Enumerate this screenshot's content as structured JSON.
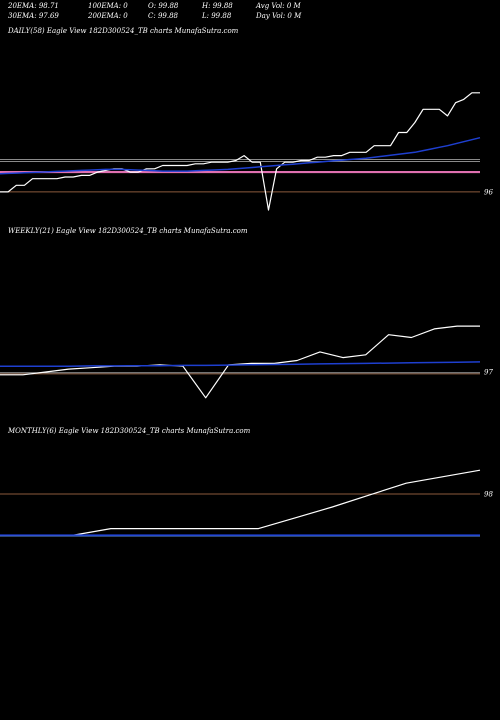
{
  "header": {
    "ema20": "20EMA: 98.71",
    "ema100": "100EMA: 0",
    "open": "O: 99.88",
    "high": "H: 99.88",
    "avg_vol": "Avg Vol: 0  M",
    "ema30": "30EMA: 97.69",
    "ema200": "200EMA: 0",
    "close": "C: 99.88",
    "low": "L: 99.88",
    "day_vol": "Day Vol: 0  M"
  },
  "colors": {
    "price": "#ffffff",
    "ema_blue": "#1e3fd0",
    "gray_line": "#b8b8b8",
    "pink_line": "#e070b0",
    "brown_line": "#8b5a3c",
    "light_blue": "#5a8ee0",
    "background": "#000000"
  },
  "chart_data": [
    {
      "type": "line",
      "title": "DAILY(58) Eagle  View  182D300524_TB charts MunafaSutra.com",
      "yticks": [
        {
          "value": 96,
          "label": "96"
        }
      ],
      "ylim": [
        95.3,
        100.6
      ],
      "series": [
        {
          "role": "price",
          "values": [
            96.0,
            96.0,
            96.2,
            96.2,
            96.4,
            96.4,
            96.4,
            96.4,
            96.45,
            96.45,
            96.5,
            96.5,
            96.6,
            96.65,
            96.7,
            96.7,
            96.6,
            96.6,
            96.7,
            96.7,
            96.8,
            96.8,
            96.8,
            96.8,
            96.85,
            96.85,
            96.9,
            96.9,
            96.9,
            96.95,
            97.1,
            96.9,
            96.9,
            95.45,
            96.7,
            96.9,
            96.9,
            96.95,
            96.95,
            97.05,
            97.05,
            97.1,
            97.1,
            97.2,
            97.2,
            97.2,
            97.4,
            97.4,
            97.4,
            97.8,
            97.8,
            98.1,
            98.5,
            98.5,
            98.5,
            98.3,
            98.7,
            98.8,
            99.0,
            99.0
          ]
        },
        {
          "role": "ema",
          "values": [
            96.55,
            96.56,
            96.57,
            96.58,
            96.59,
            96.6,
            96.61,
            96.62,
            96.63,
            96.64,
            96.65,
            96.66,
            96.67,
            96.68,
            96.68,
            96.68,
            96.67,
            96.66,
            96.65,
            96.64,
            96.63,
            96.63,
            96.63,
            96.63,
            96.64,
            96.65,
            96.66,
            96.67,
            96.68,
            96.7,
            96.72,
            96.74,
            96.76,
            96.78,
            96.8,
            96.82,
            96.84,
            96.86,
            96.88,
            96.9,
            96.92,
            96.94,
            96.96,
            96.98,
            97.0,
            97.02,
            97.05,
            97.08,
            97.11,
            97.14,
            97.17,
            97.2,
            97.25,
            97.3,
            97.35,
            97.4,
            97.46,
            97.52,
            97.58,
            97.64
          ]
        }
      ],
      "hlines": [
        {
          "role": "gray",
          "value": 96.98
        },
        {
          "role": "gray",
          "value": 96.92
        },
        {
          "role": "pink",
          "value": 96.6
        },
        {
          "role": "brown",
          "value": 96.0
        }
      ]
    },
    {
      "type": "line",
      "title": "WEEKLY(21) Eagle  View  182D300524_TB charts MunafaSutra.com",
      "yticks": [
        {
          "value": 97,
          "label": "97"
        }
      ],
      "ylim": [
        95.5,
        101.6
      ],
      "series": [
        {
          "role": "price",
          "values": [
            96.9,
            96.9,
            97.0,
            97.1,
            97.15,
            97.2,
            97.2,
            97.25,
            97.2,
            96.1,
            97.25,
            97.3,
            97.3,
            97.4,
            97.7,
            97.5,
            97.6,
            98.3,
            98.2,
            98.5,
            98.6,
            98.6
          ]
        },
        {
          "role": "ema",
          "values": [
            97.2,
            97.2,
            97.2,
            97.2,
            97.21,
            97.21,
            97.22,
            97.22,
            97.23,
            97.23,
            97.24,
            97.25,
            97.26,
            97.27,
            97.28,
            97.29,
            97.3,
            97.31,
            97.32,
            97.33,
            97.34,
            97.35
          ]
        }
      ],
      "hlines": [
        {
          "role": "gray",
          "value": 96.97
        },
        {
          "role": "brown",
          "value": 96.93
        }
      ]
    },
    {
      "type": "line",
      "title": "MONTHLY(6) Eagle  View  182D300524_TB charts MunafaSutra.com",
      "yticks": [
        {
          "value": 98,
          "label": "98"
        }
      ],
      "ylim": [
        92.4,
        100.5
      ],
      "series": [
        {
          "role": "price",
          "values": [
            96.1,
            96.1,
            96.1,
            96.4,
            96.4,
            96.4,
            96.4,
            96.4,
            96.9,
            97.4,
            97.95,
            98.5,
            98.8,
            99.1
          ]
        },
        {
          "role": "ema",
          "values": [
            96.1,
            96.1,
            96.1,
            96.1,
            96.1,
            96.1,
            96.1,
            96.1,
            96.1,
            96.1,
            96.1,
            96.1,
            96.1,
            96.1
          ]
        }
      ],
      "hlines": [
        {
          "role": "brown",
          "value": 98.0
        },
        {
          "role": "lightblue",
          "value": 96.08
        }
      ]
    }
  ]
}
